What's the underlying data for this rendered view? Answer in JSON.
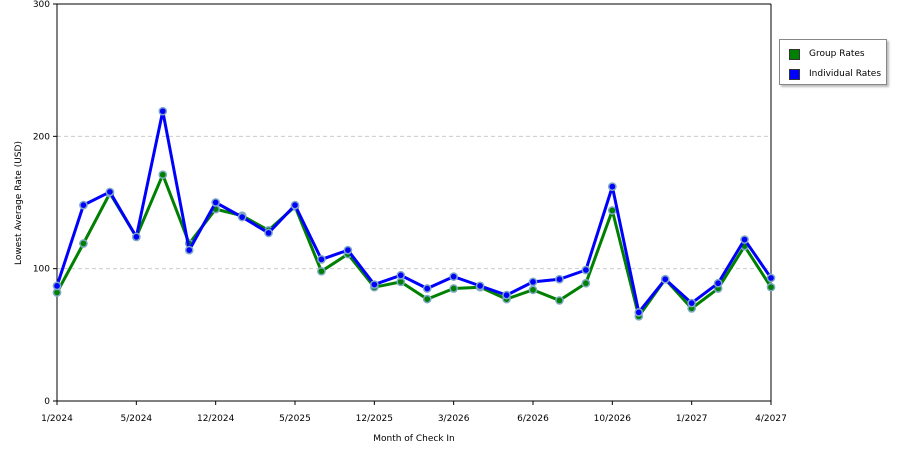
{
  "chart_data": {
    "type": "line",
    "xlabel": "Month of Check In",
    "ylabel": "Lowest Average Rate (USD)",
    "ylim": [
      0,
      300
    ],
    "yticks": [
      0,
      100,
      200,
      300
    ],
    "grid": true,
    "legend_position": "right",
    "x_tick_labels": [
      "1/2024",
      "5/2024",
      "12/2024",
      "5/2025",
      "12/2025",
      "3/2026",
      "6/2026",
      "10/2026",
      "1/2027",
      "4/2027"
    ],
    "x_tick_index": [
      0,
      3,
      6,
      9,
      12,
      15,
      18,
      21,
      24,
      27
    ],
    "series": [
      {
        "name": "Group Rates",
        "color": "#008000",
        "values": [
          82,
          119,
          157,
          124,
          171,
          119,
          145,
          140,
          129,
          147,
          98,
          111,
          86,
          90,
          77,
          85,
          86,
          77,
          84,
          76,
          89,
          144,
          64,
          92,
          70,
          85,
          117,
          86
        ]
      },
      {
        "name": "Individual Rates",
        "color": "#0000ff",
        "values": [
          87,
          148,
          158,
          124,
          219,
          114,
          150,
          139,
          127,
          148,
          107,
          114,
          88,
          95,
          85,
          94,
          87,
          80,
          90,
          92,
          99,
          162,
          67,
          92,
          74,
          89,
          122,
          93
        ]
      }
    ]
  }
}
